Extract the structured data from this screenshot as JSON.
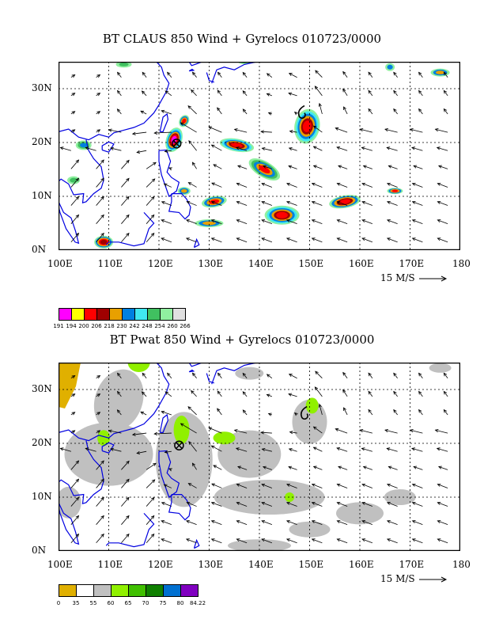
{
  "panels": [
    {
      "id": "claus",
      "title": "BT CLAUS 850 Wind + Gyrelocs 010723/0000",
      "lon_labels": [
        "100E",
        "110E",
        "120E",
        "130E",
        "140E",
        "150E",
        "160E",
        "170E",
        "180"
      ],
      "lat_labels": [
        "30N",
        "20N",
        "10N",
        "0N"
      ],
      "ref_vector_label": "15 M/S",
      "colorbar": {
        "colors": [
          "#ff00ff",
          "#ffff00",
          "#ff0000",
          "#a00000",
          "#e8a000",
          "#0080e0",
          "#40e8f0",
          "#40c060",
          "#90f0a0",
          "#e0e0e0"
        ],
        "labels": [
          "191",
          "194",
          "200",
          "206",
          "218",
          "230",
          "242",
          "248",
          "254",
          "260",
          "266"
        ]
      },
      "markers": [
        {
          "symbol": "tropical-cyclone",
          "lon": 123.5,
          "lat": 19.8
        },
        {
          "symbol": "gyre-6",
          "lon": 148.5,
          "lat": 25.5
        }
      ]
    },
    {
      "id": "pwat",
      "title": "BT Pwat 850 Wind + Gyrelocs 010723/0000",
      "lon_labels": [
        "100E",
        "110E",
        "120E",
        "130E",
        "140E",
        "150E",
        "160E",
        "170E",
        "180"
      ],
      "lat_labels": [
        "30N",
        "20N",
        "10N",
        "0N"
      ],
      "ref_vector_label": "15 M/S",
      "colorbar": {
        "colors": [
          "#e0b000",
          "#ffffff",
          "#c0c0c0",
          "#90f000",
          "#40c000",
          "#108000",
          "#0070d0",
          "#8000c0"
        ],
        "labels": [
          "0",
          "35",
          "55",
          "60",
          "65",
          "70",
          "75",
          "80",
          "84.22"
        ]
      },
      "markers": [
        {
          "symbol": "tropical-cyclone",
          "lon": 124.0,
          "lat": 19.6
        },
        {
          "symbol": "gyre-6",
          "lon": 149.0,
          "lat": 25.5
        }
      ]
    }
  ]
}
